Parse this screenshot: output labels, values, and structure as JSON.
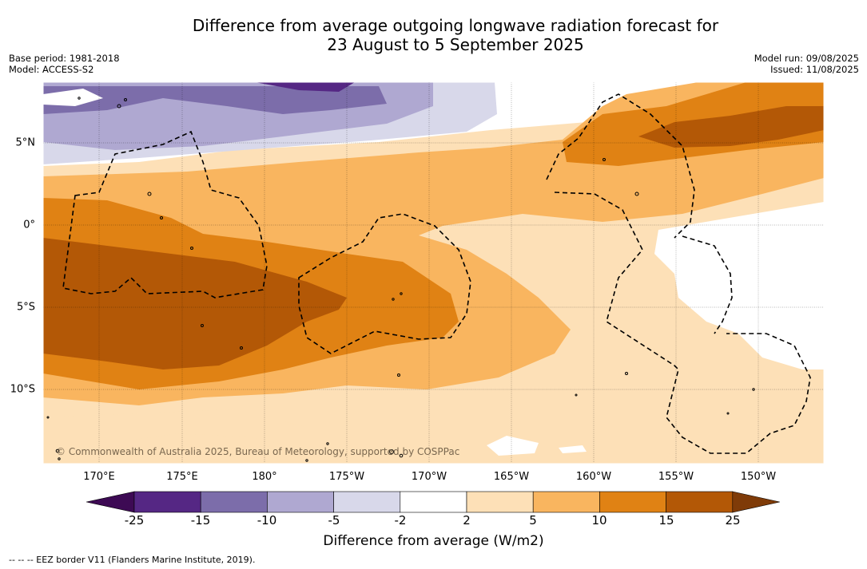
{
  "title": {
    "line1": "Difference from average outgoing longwave radiation forecast for",
    "line2": "23 August to 5 September 2025"
  },
  "meta_left": {
    "base_period": "Base period: 1981-2018",
    "model": "Model: ACCESS-S2"
  },
  "meta_right": {
    "model_run": "Model run: 09/08/2025",
    "issued": "Issued: 11/08/2025"
  },
  "map": {
    "longitude_labels": [
      "170°E",
      "175°E",
      "180°",
      "175°W",
      "170°W",
      "165°W",
      "160°W",
      "155°W",
      "150°W"
    ],
    "latitude_labels": [
      "5°N",
      "0°",
      "5°S",
      "10°S"
    ],
    "copyright": "© Commonwealth of Australia 2025, Bureau of Meteorology, supported by COSPPac"
  },
  "legend": {
    "title": "Difference from average (W/m2)",
    "ticks": [
      "-25",
      "-15",
      "-10",
      "-5",
      "-2",
      "2",
      "5",
      "10",
      "15",
      "25"
    ],
    "colors": [
      "#3d0a54",
      "#552784",
      "#7c6daa",
      "#afa8d1",
      "#d8d8ea",
      "#ffffff",
      "#fde0b7",
      "#f9b55f",
      "#e08214",
      "#b35806",
      "#7f3b08"
    ]
  },
  "footnote": "-- -- -- EEZ border V11 (Flanders Marine Institute, 2019)."
}
